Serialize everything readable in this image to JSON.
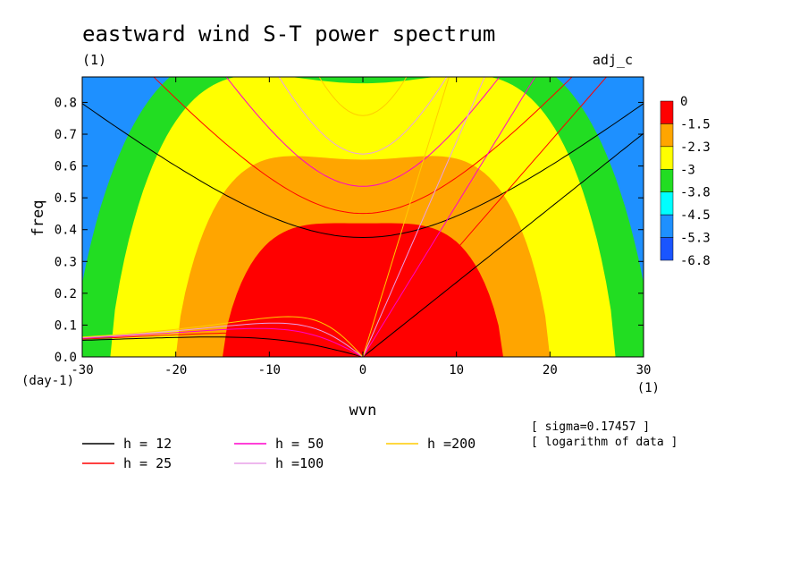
{
  "chart_data": {
    "type": "heatmap",
    "title": "eastward wind S-T power spectrum",
    "subtitle_left": "(1)",
    "subtitle_right": "adj_c",
    "xlabel": "wvn",
    "ylabel": "freq",
    "x_unit": "(1)",
    "y_unit": "(day-1)",
    "xlim": [
      -30,
      30
    ],
    "ylim": [
      0,
      0.88
    ],
    "xticks": [
      -30,
      -20,
      -10,
      0,
      10,
      20,
      30
    ],
    "xtick_labels": [
      "-30",
      "-20",
      "-10",
      "0",
      "10",
      "20",
      "30"
    ],
    "yticks": [
      0,
      0.1,
      0.2,
      0.3,
      0.4,
      0.5,
      0.6,
      0.7,
      0.8
    ],
    "ytick_labels": [
      "0.0",
      "0.1",
      "0.2",
      "0.3",
      "0.4",
      "0.5",
      "0.6",
      "0.7",
      "0.8"
    ],
    "colorbar": {
      "labels": [
        "0",
        "-1.5",
        "-2.3",
        "-3",
        "-3.8",
        "-4.5",
        "-5.3",
        "-6.8"
      ],
      "colors": [
        "#ff0000",
        "#ffa500",
        "#ffff00",
        "#22dd22",
        "#00ffff",
        "#1e90ff",
        "#1a55ff"
      ]
    },
    "contour_fill": {
      "background": "#1e90ff",
      "levels": [
        {
          "color": "#00ffff",
          "x0": 31,
          "f0": 0.86,
          "a": 0.0
        },
        {
          "color": "#22dd22",
          "x0": 31,
          "f0": 0.93,
          "a": 0.00095
        },
        {
          "color": "#ffff00",
          "x0": 27,
          "f0": 0.86,
          "a": 0.00115
        },
        {
          "color": "#ffa500",
          "x0": 20,
          "f0": 0.62,
          "a": 0.00135
        },
        {
          "color": "#ff0000",
          "x0": 15,
          "f0": 0.42,
          "a": 0.0012
        }
      ]
    },
    "notes": [
      "[ sigma=0.17457 ]",
      "[ logarithm of data ]"
    ],
    "series": [
      {
        "name": "h = 12",
        "equivalent_depth": 12,
        "color": "#000000"
      },
      {
        "name": "h = 25",
        "equivalent_depth": 25,
        "color": "#ff0000"
      },
      {
        "name": "h = 50",
        "equivalent_depth": 50,
        "color": "#ff00cc"
      },
      {
        "name": "h =100",
        "equivalent_depth": 100,
        "color": "#e8a0e8"
      },
      {
        "name": "h =200",
        "equivalent_depth": 200,
        "color": "#ffcc00"
      }
    ],
    "legend_placement": "bottom-left",
    "grid": false
  }
}
